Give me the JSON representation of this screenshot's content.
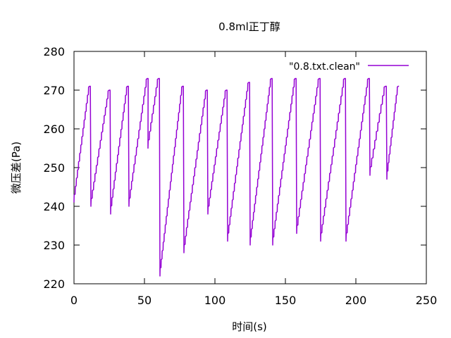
{
  "chart_data": {
    "type": "line",
    "title": "0.8ml正丁醇",
    "xlabel": "时间(s)",
    "ylabel": "微压差(Pa)",
    "xlim": [
      0,
      250
    ],
    "ylim": [
      220,
      280
    ],
    "xticks": [
      0,
      50,
      100,
      150,
      200,
      250
    ],
    "yticks": [
      220,
      230,
      240,
      250,
      260,
      270,
      280
    ],
    "grid": false,
    "legend_position": "top-right",
    "series": [
      {
        "name": "\"0.8.txt.clean\"",
        "color": "#9400d3",
        "cycles": [
          {
            "t_start": 0,
            "t_peak": 11,
            "v_start": 241,
            "v_peak": 271
          },
          {
            "t_start": 12,
            "t_peak": 25,
            "v_start": 240,
            "v_peak": 270
          },
          {
            "t_start": 26,
            "t_peak": 38,
            "v_start": 238,
            "v_peak": 271
          },
          {
            "t_start": 39,
            "t_peak": 52,
            "v_start": 240,
            "v_peak": 273
          },
          {
            "t_start": 52.5,
            "t_peak": 60,
            "v_start": 255,
            "v_peak": 273
          },
          {
            "t_start": 61,
            "t_peak": 77,
            "v_start": 222,
            "v_peak": 271
          },
          {
            "t_start": 78,
            "t_peak": 94,
            "v_start": 228,
            "v_peak": 270
          },
          {
            "t_start": 95,
            "t_peak": 108,
            "v_start": 238,
            "v_peak": 270
          },
          {
            "t_start": 109,
            "t_peak": 124,
            "v_start": 231,
            "v_peak": 272
          },
          {
            "t_start": 125,
            "t_peak": 140,
            "v_start": 230,
            "v_peak": 273
          },
          {
            "t_start": 141,
            "t_peak": 157,
            "v_start": 230,
            "v_peak": 273
          },
          {
            "t_start": 158,
            "t_peak": 174,
            "v_start": 233,
            "v_peak": 273
          },
          {
            "t_start": 175,
            "t_peak": 192,
            "v_start": 231,
            "v_peak": 273
          },
          {
            "t_start": 193,
            "t_peak": 209,
            "v_start": 231,
            "v_peak": 273
          },
          {
            "t_start": 210,
            "t_peak": 221,
            "v_start": 248,
            "v_peak": 271
          },
          {
            "t_start": 222,
            "t_peak": 230,
            "v_start": 247,
            "v_peak": 271
          }
        ]
      }
    ]
  }
}
